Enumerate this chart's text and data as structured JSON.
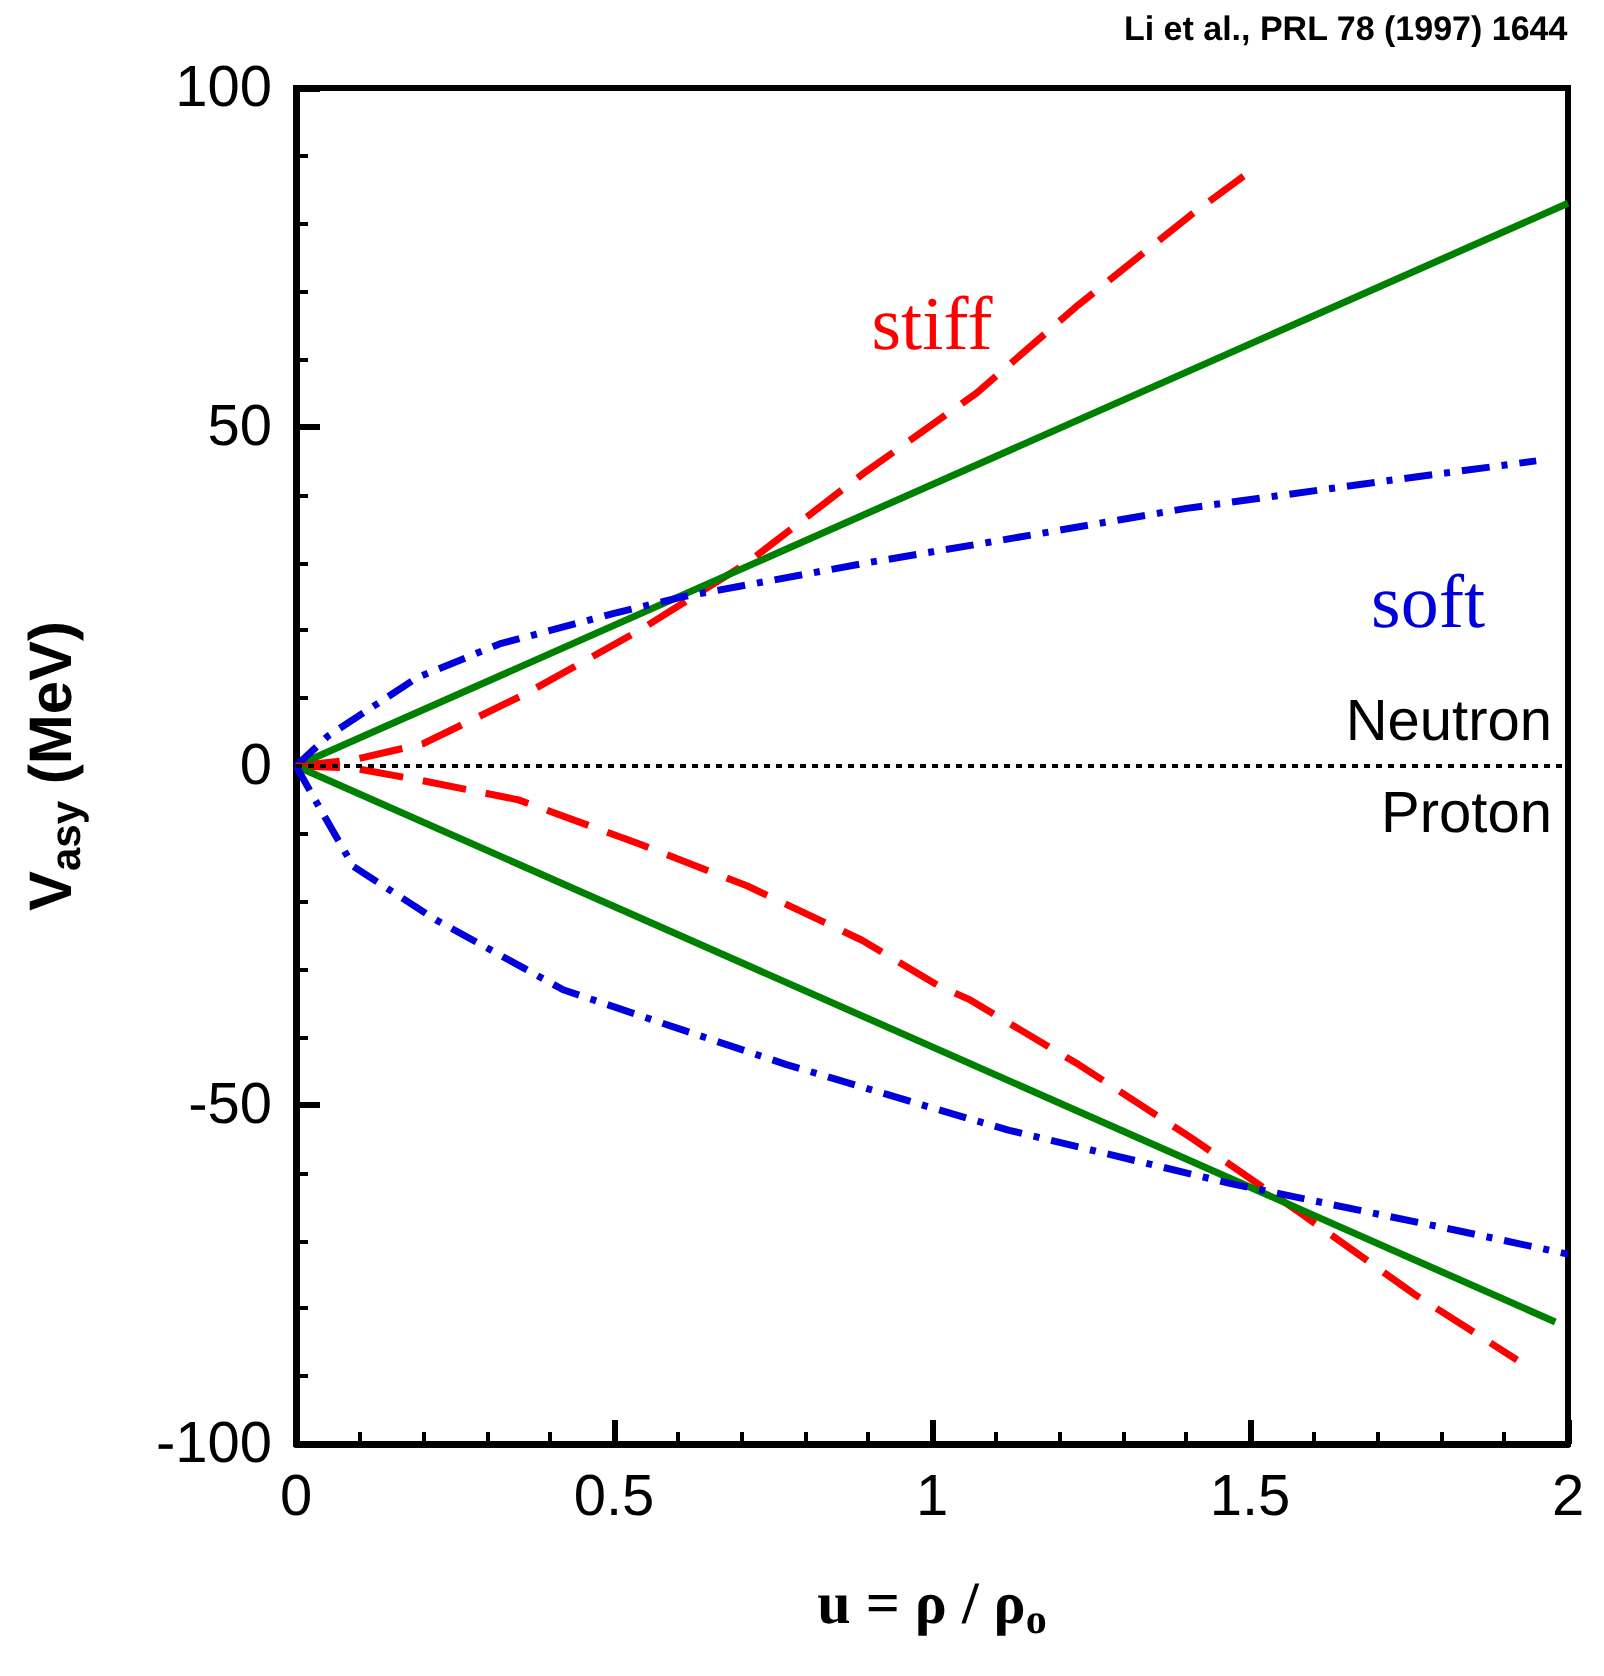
{
  "chart_data": {
    "type": "line",
    "xlabel": "u = ρ / ρ$_{o}$",
    "ylabel": "V$_{asy}$ (MeV)",
    "annotations": [
      "Li et al., PRL 78 (1997) 1644",
      "Neutron",
      "Proton"
    ],
    "xlim": [
      0,
      2
    ],
    "xticks": [
      0,
      0.5,
      1,
      1.5,
      2
    ],
    "ylim": [
      -100,
      100
    ],
    "yticks": [
      -100,
      -50,
      0,
      50,
      100
    ],
    "grid": false,
    "legend": false,
    "marker": "none",
    "ref_lines": [
      {
        "axis": "y",
        "value": 0,
        "color": "#000000",
        "line_style": "dotted"
      }
    ],
    "series": [
      {
        "name": "stiff",
        "color": "#ff0000",
        "line_style": "dashed",
        "x": [
          0,
          0.09,
          0.2,
          0.36,
          0.54,
          0.71,
          0.89,
          1.07,
          1.23,
          1.41,
          1.49
        ],
        "values": [
          0,
          0.9,
          3.3,
          10.6,
          20,
          30,
          43,
          55,
          68,
          81.5,
          87
        ]
      },
      {
        "color": "#008000",
        "line_style": "solid",
        "x": [
          0,
          2
        ],
        "values": [
          0,
          83
        ]
      },
      {
        "name": "soft",
        "color": "#0000dd",
        "line_style": "dashdot",
        "x": [
          0,
          0.05,
          0.19,
          0.32,
          0.5,
          0.61,
          0.9,
          1.09,
          1.4,
          1.71,
          1.95
        ],
        "values": [
          0,
          4.4,
          13,
          18,
          22.5,
          25,
          30,
          33,
          38,
          42,
          45
        ]
      },
      {
        "color": "#ff0000",
        "line_style": "dashed",
        "x": [
          0,
          0.09,
          0.19,
          0.35,
          0.54,
          0.71,
          0.89,
          1.01,
          1.06,
          1.23,
          1.41,
          1.58,
          1.76,
          1.92
        ],
        "values": [
          0,
          -0.3,
          -2,
          -5,
          -11.5,
          -17.7,
          -25.7,
          -32.4,
          -34.5,
          -44,
          -55,
          -66,
          -78,
          -87.6
        ]
      },
      {
        "color": "#008000",
        "line_style": "solid",
        "x": [
          0,
          1.98
        ],
        "values": [
          0,
          -82
        ]
      },
      {
        "color": "#0000dd",
        "line_style": "dashdot",
        "x": [
          0,
          0.03,
          0.09,
          0.22,
          0.42,
          0.61,
          0.77,
          1.01,
          1.12,
          1.47,
          1.82,
          2
        ],
        "values": [
          0,
          -5,
          -14.8,
          -22.7,
          -33,
          -39,
          -44,
          -50.7,
          -53.7,
          -61.6,
          -68.4,
          -72
        ]
      }
    ]
  }
}
